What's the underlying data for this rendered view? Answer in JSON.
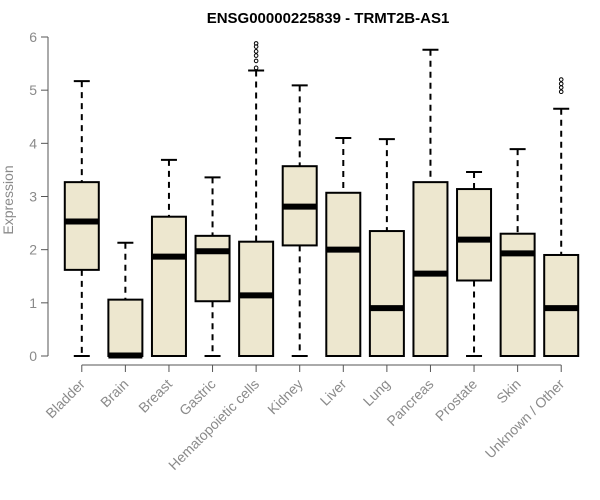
{
  "chart_data": {
    "type": "box",
    "title": "ENSG00000225839 - TRMT2B-AS1",
    "xlabel": "",
    "ylabel": "Expression",
    "ylim": [
      0,
      6
    ],
    "yticks": [
      0,
      1,
      2,
      3,
      4,
      5,
      6
    ],
    "grid": false,
    "legend": "none",
    "colors": {
      "box_fill": "#ede7cf",
      "stroke": "#000000",
      "axis_text": "#8a8a8a"
    },
    "categories": [
      "Bladder",
      "Brain",
      "Breast",
      "Gastric",
      "Hematopoietic cells",
      "Kidney",
      "Liver",
      "Lung",
      "Pancreas",
      "Prostate",
      "Skin",
      "Unknown / Other"
    ],
    "boxes": [
      {
        "category": "Bladder",
        "min": 0,
        "q1": 1.62,
        "median": 2.53,
        "q3": 3.27,
        "max": 5.17,
        "outliers": []
      },
      {
        "category": "Brain",
        "min": 0,
        "q1": 0,
        "median": 0.01,
        "q3": 1.06,
        "max": 2.13,
        "outliers": []
      },
      {
        "category": "Breast",
        "min": 0,
        "q1": 0,
        "median": 1.87,
        "q3": 2.62,
        "max": 3.69,
        "outliers": []
      },
      {
        "category": "Gastric",
        "min": 0,
        "q1": 1.03,
        "median": 1.97,
        "q3": 2.26,
        "max": 3.36,
        "outliers": []
      },
      {
        "category": "Hematopoietic cells",
        "min": 0,
        "q1": 0,
        "median": 1.14,
        "q3": 2.15,
        "max": 5.37,
        "outliers": [
          5.42,
          5.55,
          5.65,
          5.73,
          5.82,
          5.88
        ]
      },
      {
        "category": "Kidney",
        "min": 0,
        "q1": 2.08,
        "median": 2.81,
        "q3": 3.57,
        "max": 5.09,
        "outliers": []
      },
      {
        "category": "Liver",
        "min": 0,
        "q1": 0,
        "median": 2.0,
        "q3": 3.07,
        "max": 4.1,
        "outliers": []
      },
      {
        "category": "Lung",
        "min": 0,
        "q1": 0,
        "median": 0.9,
        "q3": 2.35,
        "max": 4.08,
        "outliers": []
      },
      {
        "category": "Pancreas",
        "min": 0,
        "q1": 0,
        "median": 1.55,
        "q3": 3.27,
        "max": 5.76,
        "outliers": []
      },
      {
        "category": "Prostate",
        "min": 0,
        "q1": 1.42,
        "median": 2.19,
        "q3": 3.14,
        "max": 3.46,
        "outliers": []
      },
      {
        "category": "Skin",
        "min": 0,
        "q1": 0,
        "median": 1.93,
        "q3": 2.3,
        "max": 3.89,
        "outliers": []
      },
      {
        "category": "Unknown / Other",
        "min": 0,
        "q1": 0,
        "median": 0.9,
        "q3": 1.9,
        "max": 4.65,
        "outliers": [
          4.97,
          5.05,
          5.12,
          5.2
        ]
      }
    ]
  }
}
